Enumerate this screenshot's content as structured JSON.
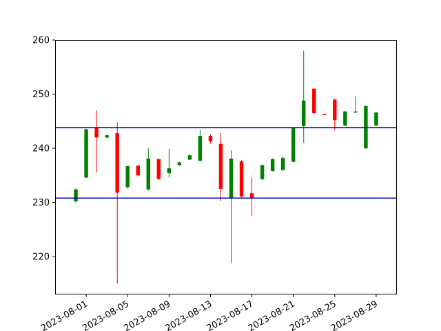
{
  "chart_data": {
    "type": "candlestick",
    "title": "",
    "xlabel": "",
    "ylabel": "",
    "ylim": [
      213,
      260
    ],
    "xlim": [
      "2023-07-29",
      "2023-08-31"
    ],
    "grid": false,
    "up_color": "#008000",
    "down_color": "#ff0000",
    "line_color": "#0000cc",
    "y_ticks": [
      220,
      230,
      240,
      250,
      260
    ],
    "x_ticks": [
      "2023-08-01",
      "2023-08-05",
      "2023-08-09",
      "2023-08-13",
      "2023-08-17",
      "2023-08-21",
      "2023-08-25",
      "2023-08-29"
    ],
    "horizontal_lines": [
      243.8,
      230.8
    ],
    "candles": [
      {
        "date": "2023-07-31",
        "open": 230.2,
        "high": 232.6,
        "low": 230.0,
        "close": 232.4
      },
      {
        "date": "2023-08-01",
        "open": 234.6,
        "high": 243.6,
        "low": 234.5,
        "close": 243.5
      },
      {
        "date": "2023-08-02",
        "open": 243.8,
        "high": 247.0,
        "low": 235.5,
        "close": 242.0
      },
      {
        "date": "2023-08-03",
        "open": 242.0,
        "high": 242.5,
        "low": 241.8,
        "close": 242.4
      },
      {
        "date": "2023-08-04",
        "open": 242.8,
        "high": 244.8,
        "low": 215.0,
        "close": 231.8
      },
      {
        "date": "2023-08-05",
        "open": 232.8,
        "high": 236.8,
        "low": 232.6,
        "close": 236.7
      },
      {
        "date": "2023-08-06",
        "open": 236.8,
        "high": 236.9,
        "low": 234.8,
        "close": 235.0
      },
      {
        "date": "2023-08-07",
        "open": 232.4,
        "high": 240.0,
        "low": 232.2,
        "close": 238.1
      },
      {
        "date": "2023-08-08",
        "open": 238.0,
        "high": 238.1,
        "low": 234.2,
        "close": 234.3
      },
      {
        "date": "2023-08-09",
        "open": 235.4,
        "high": 239.9,
        "low": 234.6,
        "close": 236.3
      },
      {
        "date": "2023-08-10",
        "open": 236.9,
        "high": 237.5,
        "low": 236.8,
        "close": 237.4
      },
      {
        "date": "2023-08-11",
        "open": 237.9,
        "high": 238.9,
        "low": 237.8,
        "close": 238.7
      },
      {
        "date": "2023-08-12",
        "open": 237.7,
        "high": 243.4,
        "low": 237.6,
        "close": 242.3
      },
      {
        "date": "2023-08-13",
        "open": 242.3,
        "high": 242.5,
        "low": 240.9,
        "close": 241.3
      },
      {
        "date": "2023-08-14",
        "open": 240.8,
        "high": 242.8,
        "low": 230.2,
        "close": 232.5
      },
      {
        "date": "2023-08-15",
        "open": 230.8,
        "high": 239.6,
        "low": 218.8,
        "close": 238.1
      },
      {
        "date": "2023-08-16",
        "open": 237.6,
        "high": 237.8,
        "low": 230.9,
        "close": 231.1
      },
      {
        "date": "2023-08-17",
        "open": 231.7,
        "high": 234.6,
        "low": 227.5,
        "close": 230.9
      },
      {
        "date": "2023-08-18",
        "open": 234.3,
        "high": 237.0,
        "low": 234.1,
        "close": 236.9
      },
      {
        "date": "2023-08-19",
        "open": 235.8,
        "high": 238.1,
        "low": 235.7,
        "close": 238.0
      },
      {
        "date": "2023-08-20",
        "open": 236.0,
        "high": 238.5,
        "low": 235.8,
        "close": 238.2
      },
      {
        "date": "2023-08-21",
        "open": 237.5,
        "high": 243.9,
        "low": 237.4,
        "close": 243.8
      },
      {
        "date": "2023-08-22",
        "open": 244.1,
        "high": 258.0,
        "low": 241.0,
        "close": 248.8
      },
      {
        "date": "2023-08-23",
        "open": 251.0,
        "high": 251.1,
        "low": 246.4,
        "close": 246.5
      },
      {
        "date": "2023-08-24",
        "open": 246.3,
        "high": 246.4,
        "low": 246.1,
        "close": 246.2
      },
      {
        "date": "2023-08-25",
        "open": 249.0,
        "high": 249.1,
        "low": 243.3,
        "close": 245.2
      },
      {
        "date": "2023-08-26",
        "open": 244.2,
        "high": 246.9,
        "low": 244.1,
        "close": 246.8
      },
      {
        "date": "2023-08-27",
        "open": 246.6,
        "high": 249.6,
        "low": 246.5,
        "close": 246.8
      },
      {
        "date": "2023-08-28",
        "open": 240.0,
        "high": 247.9,
        "low": 239.9,
        "close": 247.8
      },
      {
        "date": "2023-08-29",
        "open": 244.2,
        "high": 246.7,
        "low": 244.1,
        "close": 246.6
      }
    ]
  }
}
